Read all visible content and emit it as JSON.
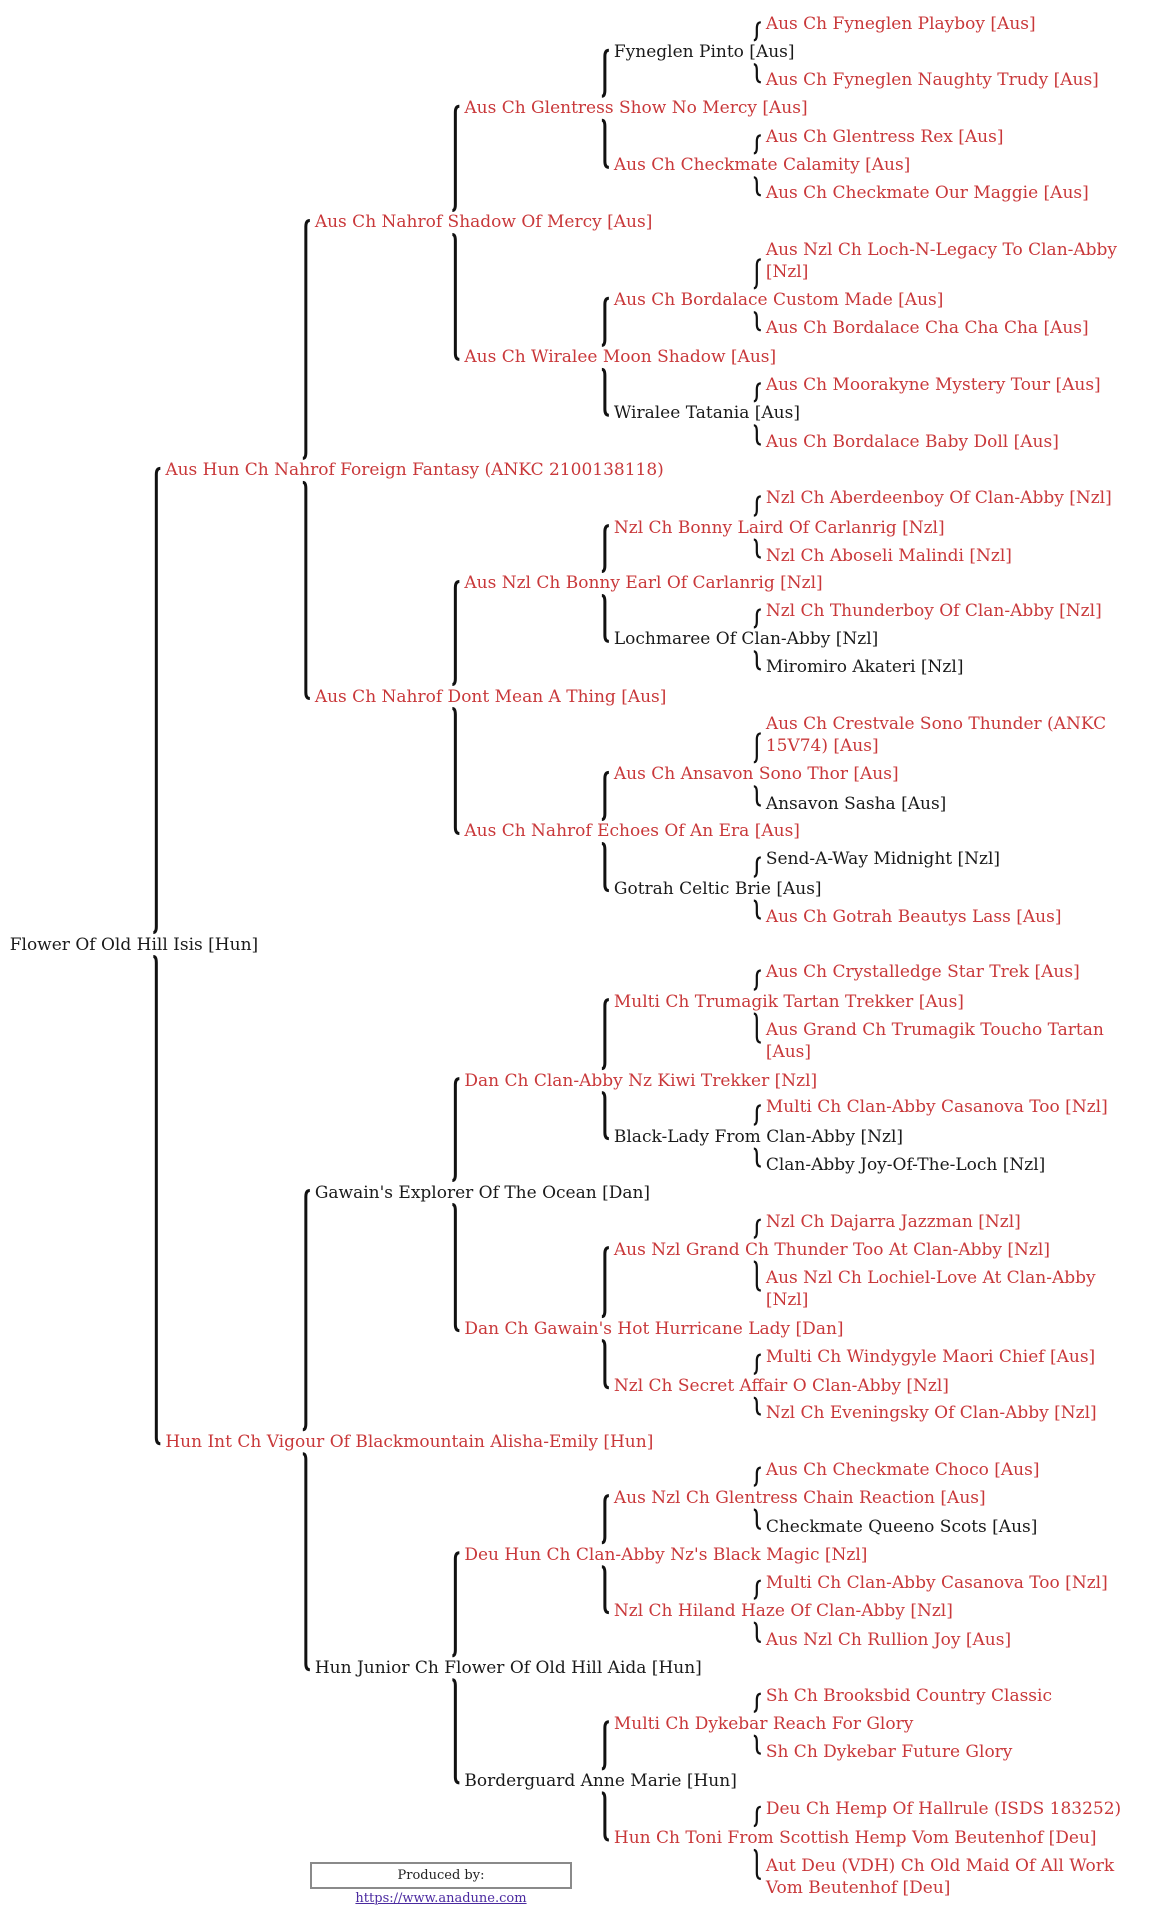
{
  "colors": {
    "titled": "#c9383a",
    "untitled": "#1a1a1a"
  },
  "pedigree": {
    "root": [
      {
        "name": "Flower Of Old Hill Isis [Hun]",
        "titled": false
      }
    ],
    "gen1": [
      {
        "name": "Aus Hun Ch Nahrof Foreign Fantasy (ANKC 2100138118)",
        "titled": true
      },
      {
        "name": "Hun Int Ch Vigour Of Blackmountain Alisha-Emily [Hun]",
        "titled": true
      }
    ],
    "gen2": [
      {
        "name": "Aus Ch Nahrof Shadow Of Mercy [Aus]",
        "titled": true
      },
      {
        "name": "Aus Ch Nahrof Dont Mean A Thing [Aus]",
        "titled": true
      },
      {
        "name": "Gawain's Explorer Of The Ocean [Dan]",
        "titled": false
      },
      {
        "name": "Hun Junior Ch Flower Of Old Hill Aida [Hun]",
        "titled": false
      }
    ],
    "gen3": [
      {
        "name": "Aus Ch Glentress Show No Mercy [Aus]",
        "titled": true
      },
      {
        "name": "Aus Ch Wiralee Moon Shadow [Aus]",
        "titled": true
      },
      {
        "name": "Aus Nzl Ch Bonny Earl Of Carlanrig [Nzl]",
        "titled": true
      },
      {
        "name": "Aus Ch Nahrof Echoes Of An Era [Aus]",
        "titled": true
      },
      {
        "name": "Dan Ch Clan-Abby Nz Kiwi Trekker [Nzl]",
        "titled": true
      },
      {
        "name": "Dan Ch Gawain's Hot Hurricane Lady [Dan]",
        "titled": true
      },
      {
        "name": "Deu Hun Ch Clan-Abby Nz's Black Magic [Nzl]",
        "titled": true
      },
      {
        "name": "Borderguard Anne Marie [Hun]",
        "titled": false
      }
    ],
    "gen4": [
      {
        "name": "Fyneglen Pinto [Aus]",
        "titled": false
      },
      {
        "name": "Aus Ch Checkmate Calamity [Aus]",
        "titled": true
      },
      {
        "name": "Aus Ch Bordalace Custom Made [Aus]",
        "titled": true
      },
      {
        "name": "Wiralee Tatania [Aus]",
        "titled": false
      },
      {
        "name": "Nzl Ch Bonny Laird Of Carlanrig [Nzl]",
        "titled": true
      },
      {
        "name": "Lochmaree Of Clan-Abby [Nzl]",
        "titled": false
      },
      {
        "name": "Aus Ch Ansavon Sono Thor [Aus]",
        "titled": true
      },
      {
        "name": "Gotrah Celtic Brie [Aus]",
        "titled": false
      },
      {
        "name": "Multi Ch Trumagik Tartan Trekker [Aus]",
        "titled": true
      },
      {
        "name": "Black-Lady From Clan-Abby [Nzl]",
        "titled": false
      },
      {
        "name": "Aus Nzl Grand Ch Thunder Too At Clan-Abby [Nzl]",
        "titled": true
      },
      {
        "name": "Nzl Ch Secret Affair O Clan-Abby [Nzl]",
        "titled": true
      },
      {
        "name": "Aus Nzl Ch Glentress Chain Reaction [Aus]",
        "titled": true
      },
      {
        "name": "Nzl Ch Hiland Haze Of Clan-Abby [Nzl]",
        "titled": true
      },
      {
        "name": "Multi Ch Dykebar Reach For Glory",
        "titled": true
      },
      {
        "name": "Hun Ch Toni From Scottish Hemp Vom Beutenhof [Deu]",
        "titled": true
      }
    ],
    "gen5": [
      {
        "name": "Aus Ch Fyneglen Playboy [Aus]",
        "titled": true
      },
      {
        "name": "Aus Ch Fyneglen Naughty Trudy [Aus]",
        "titled": true
      },
      {
        "name": "Aus Ch Glentress Rex [Aus]",
        "titled": true
      },
      {
        "name": "Aus Ch Checkmate Our Maggie [Aus]",
        "titled": true
      },
      {
        "name": "Aus Nzl Ch Loch-N-Legacy To Clan-Abby [Nzl]",
        "titled": true
      },
      {
        "name": "Aus Ch Bordalace Cha Cha Cha [Aus]",
        "titled": true
      },
      {
        "name": "Aus Ch Moorakyne Mystery Tour [Aus]",
        "titled": true
      },
      {
        "name": "Aus Ch Bordalace Baby Doll [Aus]",
        "titled": true
      },
      {
        "name": "Nzl Ch Aberdeenboy Of Clan-Abby [Nzl]",
        "titled": true
      },
      {
        "name": "Nzl Ch Aboseli Malindi [Nzl]",
        "titled": true
      },
      {
        "name": "Nzl Ch Thunderboy Of Clan-Abby [Nzl]",
        "titled": true
      },
      {
        "name": "Miromiro Akateri [Nzl]",
        "titled": false
      },
      {
        "name": "Aus Ch Crestvale Sono Thunder (ANKC 15V74) [Aus]",
        "titled": true
      },
      {
        "name": "Ansavon Sasha [Aus]",
        "titled": false
      },
      {
        "name": "Send-A-Way Midnight [Nzl]",
        "titled": false
      },
      {
        "name": "Aus Ch Gotrah Beautys Lass [Aus]",
        "titled": true
      },
      {
        "name": "Aus Ch Crystalledge Star Trek [Aus]",
        "titled": true
      },
      {
        "name": "Aus Grand Ch Trumagik Toucho Tartan [Aus]",
        "titled": true
      },
      {
        "name": "Multi Ch Clan-Abby Casanova Too [Nzl]",
        "titled": true
      },
      {
        "name": "Clan-Abby Joy-Of-The-Loch [Nzl]",
        "titled": false
      },
      {
        "name": "Nzl Ch Dajarra Jazzman [Nzl]",
        "titled": true
      },
      {
        "name": "Aus Nzl Ch Lochiel-Love At Clan-Abby [Nzl]",
        "titled": true
      },
      {
        "name": "Multi Ch Windygyle Maori Chief [Aus]",
        "titled": true
      },
      {
        "name": "Nzl Ch Eveningsky Of Clan-Abby [Nzl]",
        "titled": true
      },
      {
        "name": "Aus Ch Checkmate Choco [Aus]",
        "titled": true
      },
      {
        "name": "Checkmate Queeno Scots [Aus]",
        "titled": false
      },
      {
        "name": "Multi Ch Clan-Abby Casanova Too [Nzl]",
        "titled": true
      },
      {
        "name": "Aus Nzl Ch Rullion Joy [Aus]",
        "titled": true
      },
      {
        "name": "Sh Ch Brooksbid Country Classic",
        "titled": true
      },
      {
        "name": "Sh Ch Dykebar Future Glory",
        "titled": true
      },
      {
        "name": "Deu Ch Hemp Of Hallrule (ISDS 183252)",
        "titled": true
      },
      {
        "name": "Aut Deu (VDH) Ch Old Maid Of All Work Vom Beutenhof [Deu]",
        "titled": true
      }
    ]
  },
  "footer": {
    "label": "Produced by:",
    "link": "https://www.anadune.com"
  }
}
